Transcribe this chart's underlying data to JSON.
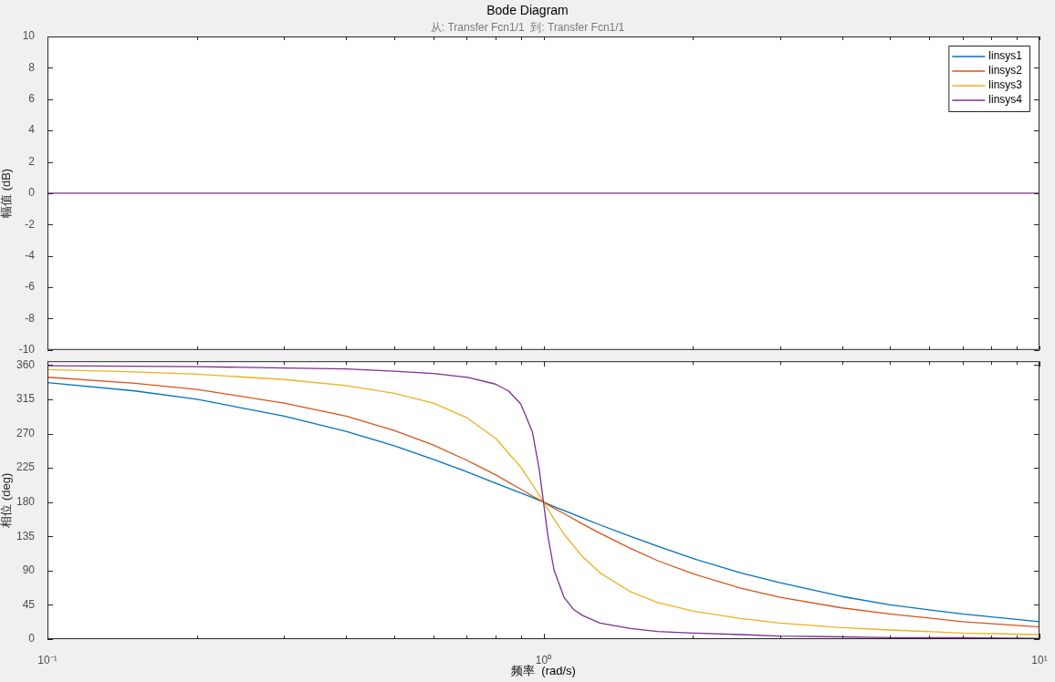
{
  "chart_data": [
    {
      "type": "line",
      "title": "Bode Diagram",
      "subtitle": "从: Transfer Fcn1/1  到: Transfer Fcn1/1",
      "ylabel": "幅值 (dB)",
      "log": "x",
      "tick_labels": "y",
      "legend": "top right",
      "xlim": [
        0.1,
        10
      ],
      "xticks": [
        {
          "value": 0.1,
          "label": null
        },
        {
          "value": 0.2,
          "label": null
        },
        {
          "value": 0.3,
          "label": null
        },
        {
          "value": 0.4,
          "label": null
        },
        {
          "value": 0.5,
          "label": null
        },
        {
          "value": 0.6,
          "label": null
        },
        {
          "value": 0.7,
          "label": null
        },
        {
          "value": 0.8,
          "label": null
        },
        {
          "value": 0.9,
          "label": null
        },
        {
          "value": 1,
          "label": null
        },
        {
          "value": 2,
          "label": null
        },
        {
          "value": 3,
          "label": null
        },
        {
          "value": 4,
          "label": null
        },
        {
          "value": 5,
          "label": null
        },
        {
          "value": 6,
          "label": null
        },
        {
          "value": 7,
          "label": null
        },
        {
          "value": 8,
          "label": null
        },
        {
          "value": 9,
          "label": null
        },
        {
          "value": 10,
          "label": null
        }
      ],
      "ylim": [
        -10,
        10
      ],
      "yticks": [
        -10,
        -8,
        -6,
        -4,
        -2,
        0,
        2,
        4,
        6,
        8,
        10
      ],
      "x": [
        0.1,
        10
      ],
      "series": [
        {
          "name": "linsys1",
          "color": "#0072bd",
          "values": [
            null,
            null
          ]
        },
        {
          "name": "linsys2",
          "color": "#d95319",
          "values": [
            null,
            null
          ]
        },
        {
          "name": "linsys3",
          "color": "#edb120",
          "values": [
            null,
            null
          ]
        },
        {
          "name": "linsys4",
          "color": "#7e2f8e",
          "values": [
            0,
            0
          ]
        }
      ]
    },
    {
      "type": "line",
      "xlabel": "频率  (rad/s)",
      "ylabel": "相位 (deg)",
      "log": "x",
      "xlim": [
        0.1,
        10
      ],
      "xticks": [
        {
          "value": 0.1,
          "label": "10⁻¹"
        },
        {
          "value": 0.2,
          "label": null
        },
        {
          "value": 0.3,
          "label": null
        },
        {
          "value": 0.4,
          "label": null
        },
        {
          "value": 0.5,
          "label": null
        },
        {
          "value": 0.6,
          "label": null
        },
        {
          "value": 0.7,
          "label": null
        },
        {
          "value": 0.8,
          "label": null
        },
        {
          "value": 0.9,
          "label": null
        },
        {
          "value": 1,
          "label": "10⁰"
        },
        {
          "value": 2,
          "label": null
        },
        {
          "value": 3,
          "label": null
        },
        {
          "value": 4,
          "label": null
        },
        {
          "value": 5,
          "label": null
        },
        {
          "value": 6,
          "label": null
        },
        {
          "value": 7,
          "label": null
        },
        {
          "value": 8,
          "label": null
        },
        {
          "value": 9,
          "label": null
        },
        {
          "value": 10,
          "label": "10¹"
        }
      ],
      "ylim": [
        0,
        365
      ],
      "yticks": [
        0,
        45,
        90,
        135,
        180,
        225,
        270,
        315,
        360
      ],
      "series": [
        {
          "color": "#0072bd",
          "x": [
            0.1,
            0.15,
            0.2,
            0.3,
            0.4,
            0.5,
            0.6,
            0.7,
            0.8,
            0.9,
            0.95,
            1,
            1.05,
            1.1,
            1.2,
            1.3,
            1.5,
            1.7,
            2,
            2.5,
            3,
            4,
            5,
            7,
            10
          ],
          "values": [
            337,
            326,
            315,
            293,
            273,
            254,
            236,
            220,
            205,
            192,
            186,
            180,
            174,
            169,
            159,
            150,
            135,
            122,
            106,
            87,
            74,
            56,
            45,
            33,
            23
          ]
        },
        {
          "color": "#d95319",
          "x": [
            0.1,
            0.15,
            0.2,
            0.3,
            0.4,
            0.5,
            0.6,
            0.7,
            0.8,
            0.9,
            0.95,
            1,
            1.05,
            1.1,
            1.2,
            1.3,
            1.5,
            1.7,
            2,
            2.5,
            3,
            4,
            5,
            7,
            10
          ],
          "values": [
            344,
            336,
            328,
            310,
            293,
            274,
            255,
            235,
            216,
            197,
            188,
            180,
            172,
            165,
            151,
            139,
            119,
            103,
            86,
            67,
            55,
            41,
            33,
            23,
            16
          ]
        },
        {
          "color": "#edb120",
          "x": [
            0.1,
            0.15,
            0.2,
            0.3,
            0.4,
            0.5,
            0.6,
            0.7,
            0.8,
            0.9,
            0.95,
            1,
            1.05,
            1.1,
            1.2,
            1.3,
            1.5,
            1.7,
            2,
            2.5,
            3,
            4,
            5,
            7,
            10
          ],
          "values": [
            354,
            351,
            348,
            341,
            333,
            323,
            310,
            291,
            264,
            226,
            203,
            180,
            158,
            138,
            108,
            87,
            62,
            48,
            37,
            27,
            21,
            15,
            12,
            8,
            6
          ]
        },
        {
          "color": "#7e2f8e",
          "x": [
            0.1,
            0.2,
            0.3,
            0.4,
            0.5,
            0.6,
            0.7,
            0.8,
            0.85,
            0.9,
            0.95,
            0.98,
            1,
            1.02,
            1.05,
            1.1,
            1.15,
            1.2,
            1.3,
            1.5,
            1.7,
            2,
            2.5,
            3,
            4,
            5,
            7,
            10
          ],
          "values": [
            359,
            358,
            356,
            355,
            352,
            349,
            344,
            335,
            326,
            309,
            272,
            224,
            180,
            137,
            91,
            55,
            39,
            31,
            21,
            14,
            10,
            8,
            6,
            4,
            3,
            2,
            2,
            1
          ]
        }
      ]
    }
  ]
}
